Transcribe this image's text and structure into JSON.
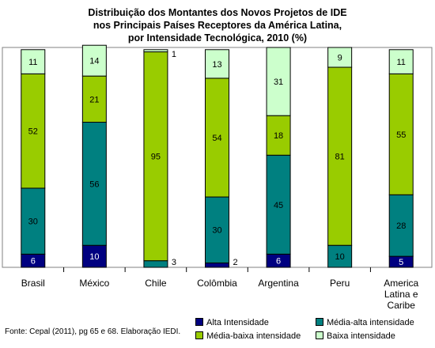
{
  "chart_data": {
    "type": "bar",
    "stacked": true,
    "title_lines": [
      "Distribuição dos Montantes dos Novos Projetos de IDE",
      "nos Principais Países Receptores da América Latina,",
      "por Intensidade Tecnológica, 2010 (%)"
    ],
    "categories": [
      [
        "Brasil"
      ],
      [
        "México"
      ],
      [
        "Chile"
      ],
      [
        "Colômbia"
      ],
      [
        "Argentina"
      ],
      [
        "Peru"
      ],
      [
        "America",
        "Latina e",
        "Caribe"
      ]
    ],
    "series": [
      {
        "name": "Alta Intensidade",
        "color": "#000080",
        "values": [
          6,
          10,
          0,
          2,
          6,
          0,
          5
        ],
        "labels": [
          "6",
          "10",
          "",
          "2",
          "6",
          "",
          "5"
        ]
      },
      {
        "name": "Média-alta intensidade",
        "color": "#008080",
        "values": [
          30,
          56,
          3,
          30,
          45,
          10,
          28
        ],
        "labels": [
          "30",
          "56",
          "3",
          "30",
          "45",
          "10",
          "28"
        ]
      },
      {
        "name": "Média-baixa intensidade",
        "color": "#99cc00",
        "values": [
          52,
          21,
          95,
          54,
          18,
          81,
          55
        ],
        "labels": [
          "52",
          "21",
          "95",
          "54",
          "18",
          "81",
          "55"
        ]
      },
      {
        "name": "Baixa intensidade",
        "color": "#ccffcc",
        "values": [
          11,
          14,
          1,
          13,
          31,
          9,
          11
        ],
        "labels": [
          "11",
          "14",
          "1",
          "13",
          "31",
          "9",
          "11"
        ]
      }
    ],
    "ylim": [
      0,
      100
    ],
    "grid": false,
    "legend_position": "bottom-right"
  },
  "source_note": "Fonte: Cepal (2011), pg 65 e 68. Elaboração IEDI."
}
